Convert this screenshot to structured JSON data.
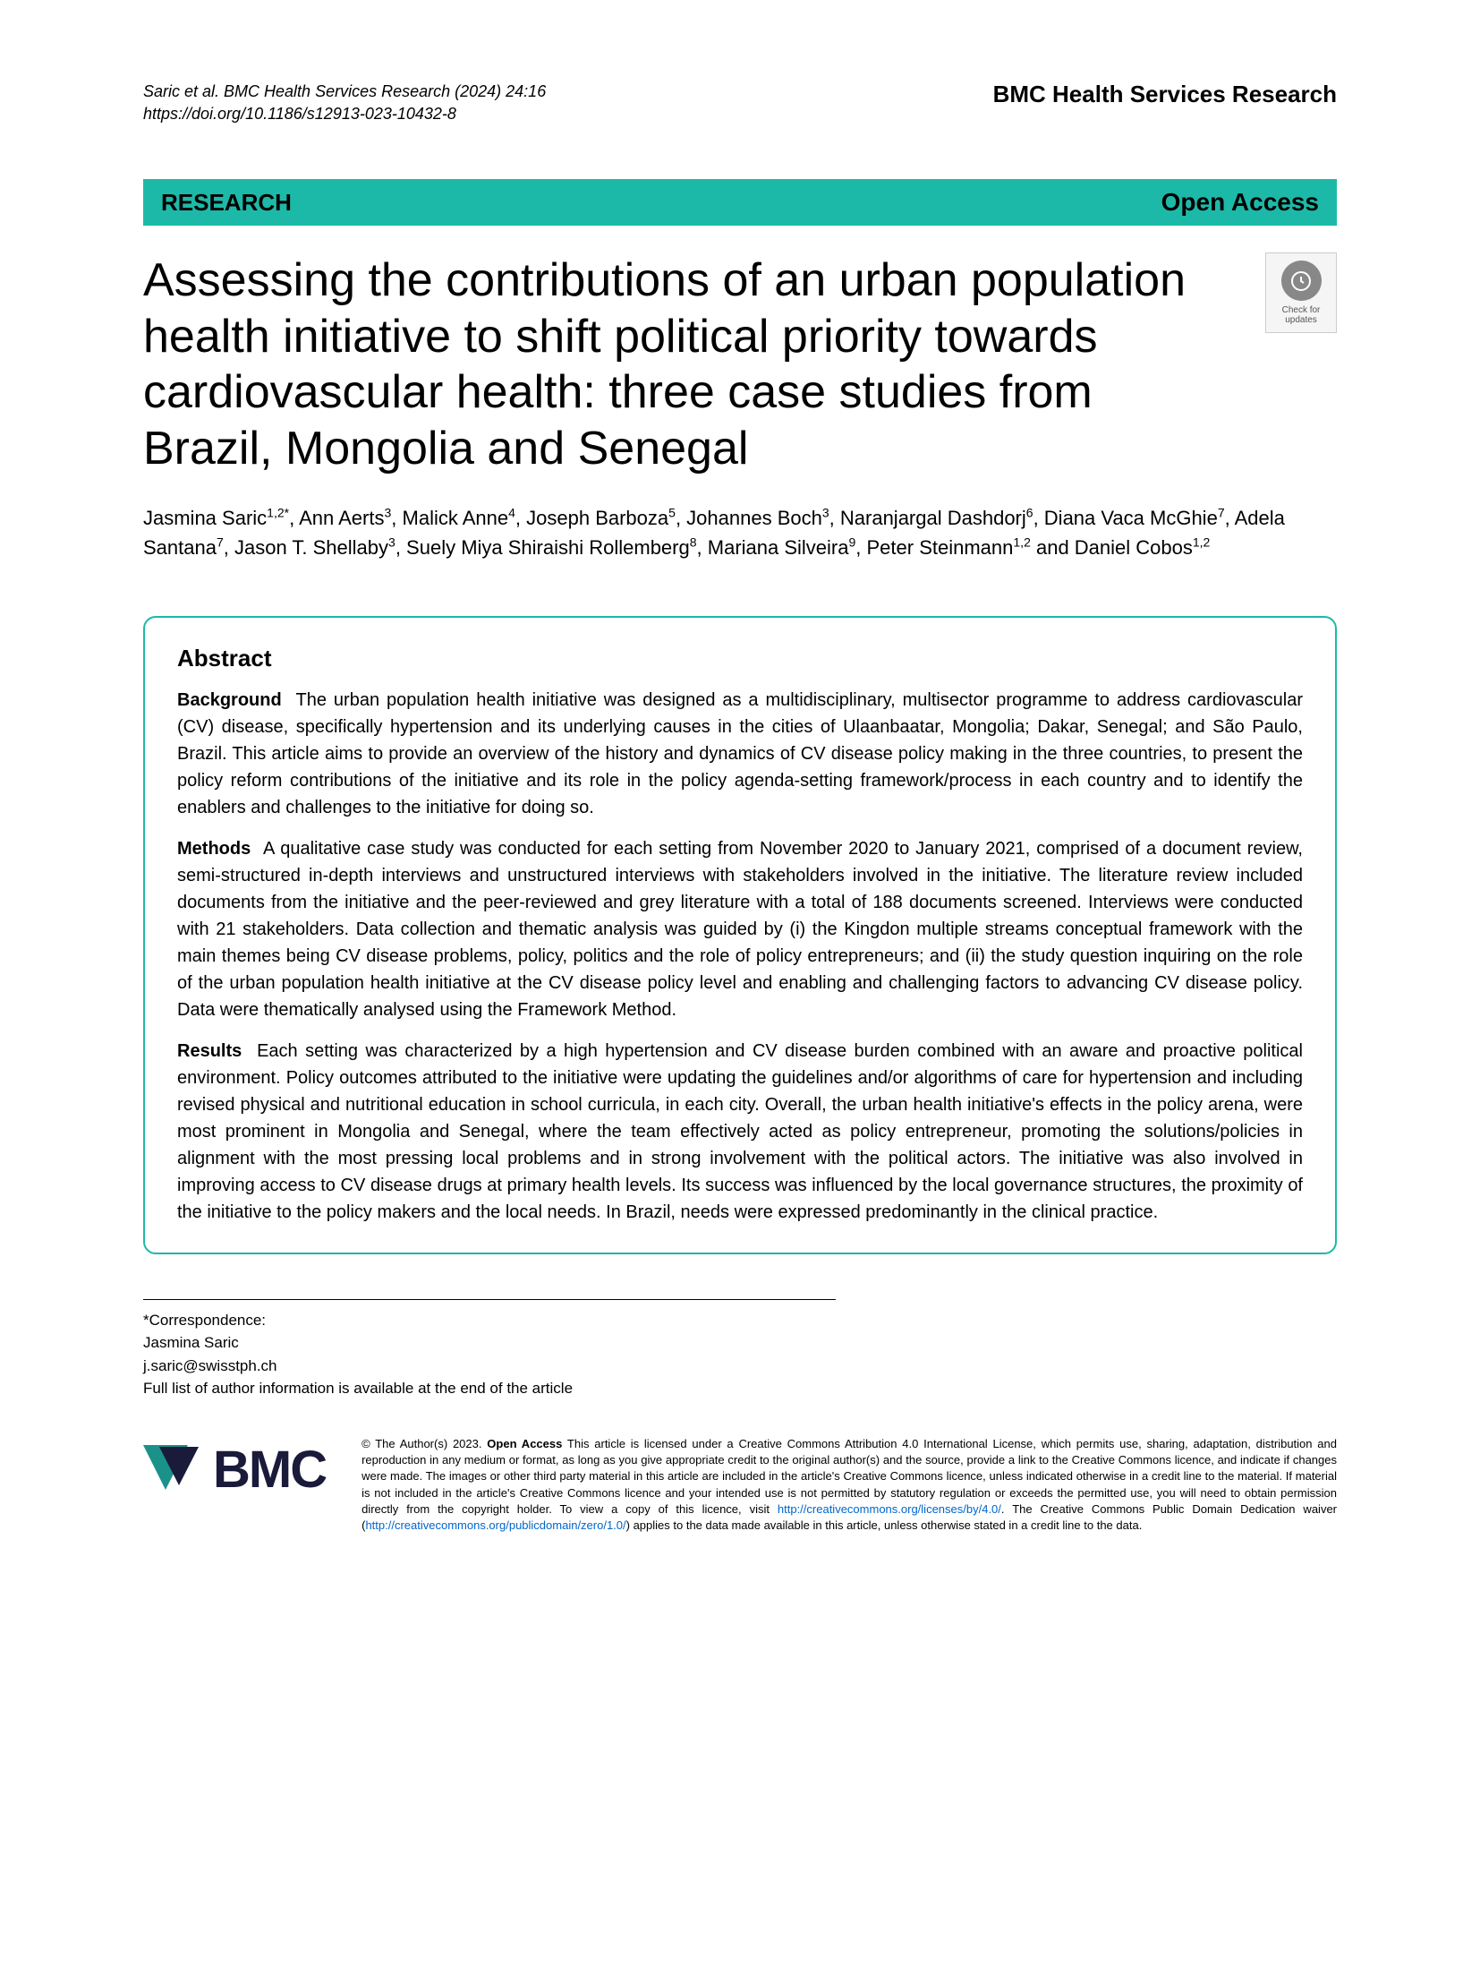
{
  "header": {
    "citation_line1": "Saric et al. BMC Health Services Research       (2024) 24:16",
    "citation_line2": "https://doi.org/10.1186/s12913-023-10432-8",
    "journal_name": "BMC Health Services Research"
  },
  "banner": {
    "research_label": "RESEARCH",
    "open_access_label": "Open Access",
    "background_color": "#1db9a8"
  },
  "title": "Assessing the contributions of an urban population health initiative to shift political priority towards cardiovascular health: three case studies from Brazil, Mongolia and Senegal",
  "check_updates": {
    "label_line1": "Check for",
    "label_line2": "updates"
  },
  "authors_html": "Jasmina Saric<sup>1,2*</sup>, Ann Aerts<sup>3</sup>, Malick Anne<sup>4</sup>, Joseph Barboza<sup>5</sup>, Johannes Boch<sup>3</sup>, Naranjargal Dashdorj<sup>6</sup>, Diana Vaca McGhie<sup>7</sup>, Adela Santana<sup>7</sup>, Jason T. Shellaby<sup>3</sup>, Suely Miya Shiraishi Rollemberg<sup>8</sup>, Mariana Silveira<sup>9</sup>, Peter Steinmann<sup>1,2</sup> and Daniel Cobos<sup>1,2</sup>",
  "abstract": {
    "heading": "Abstract",
    "background_label": "Background",
    "background_text": "The urban population health initiative was designed as a multidisciplinary, multisector programme to address cardiovascular (CV) disease, specifically hypertension and its underlying causes in the cities of Ulaanbaatar, Mongolia; Dakar, Senegal; and São Paulo, Brazil. This article aims to provide an overview of the history and dynamics of CV disease policy making in the three countries, to present the policy reform contributions of the initiative and its role in the policy agenda-setting framework/process in each country and to identify the enablers and challenges to the initiative for doing so.",
    "methods_label": "Methods",
    "methods_text": "A qualitative case study was conducted for each setting from November 2020 to January 2021, comprised of a document review, semi-structured in-depth interviews and unstructured interviews with stakeholders involved in the initiative. The literature review included documents from the initiative and the peer-reviewed and grey literature with a total of 188 documents screened. Interviews were conducted with 21 stakeholders. Data collection and thematic analysis was guided by (i) the Kingdon multiple streams conceptual framework with the main themes being CV disease problems, policy, politics and the role of policy entrepreneurs; and (ii) the study question inquiring on the role of the urban population health initiative at the CV disease policy level and enabling and challenging factors to advancing CV disease policy. Data were thematically analysed using the Framework Method.",
    "results_label": "Results",
    "results_text": "Each setting was characterized by a high hypertension and CV disease burden combined with an aware and proactive political environment. Policy outcomes attributed to the initiative were updating the guidelines and/or algorithms of care for hypertension and including revised physical and nutritional education in school curricula, in each city. Overall, the urban health initiative's effects in the policy arena, were most prominent in Mongolia and Senegal, where the team effectively acted as policy entrepreneur, promoting the solutions/policies in alignment with the most pressing local problems and in strong involvement with the political actors. The initiative was also involved in improving access to CV disease drugs at primary health levels. Its success was influenced by the local governance structures, the proximity of the initiative to the policy makers and the local needs. In Brazil, needs were expressed predominantly in the clinical practice."
  },
  "correspondence": {
    "label": "*Correspondence:",
    "name": "Jasmina Saric",
    "email": "j.saric@swisstph.ch",
    "note": "Full list of author information is available at the end of the article"
  },
  "bmc_logo": {
    "text": "BMC",
    "triangle_color": "#1a928a",
    "text_color": "#1a1a3a"
  },
  "license": {
    "copyright_prefix": "© The Author(s) 2023. ",
    "open_access_label": "Open Access",
    "text_part1": " This article is licensed under a Creative Commons Attribution 4.0 International License, which permits use, sharing, adaptation, distribution and reproduction in any medium or format, as long as you give appropriate credit to the original author(s) and the source, provide a link to the Creative Commons licence, and indicate if changes were made. The images or other third party material in this article are included in the article's Creative Commons licence, unless indicated otherwise in a credit line to the material. If material is not included in the article's Creative Commons licence and your intended use is not permitted by statutory regulation or exceeds the permitted use, you will need to obtain permission directly from the copyright holder. To view a copy of this licence, visit ",
    "link1_text": "http://creativecommons.org/licenses/by/4.0/",
    "text_part2": ". The Creative Commons Public Domain Dedication waiver (",
    "link2_text": "http://creativecommons.org/publicdomain/zero/1.0/",
    "text_part3": ") applies to the data made available in this article, unless otherwise stated in a credit line to the data."
  },
  "colors": {
    "teal": "#1db9a8",
    "link_blue": "#0066cc",
    "text_black": "#000000"
  }
}
